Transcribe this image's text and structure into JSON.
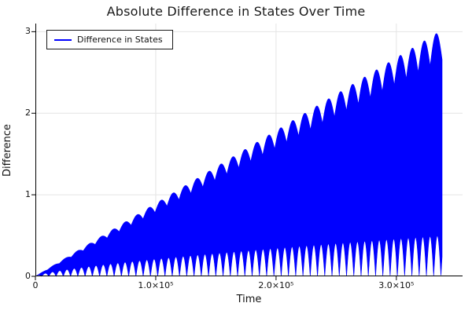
{
  "chart_data": {
    "type": "line",
    "title": "Absolute Difference in States Over Time",
    "xlabel": "Time",
    "ylabel": "Difference",
    "xlim": [
      0,
      355000
    ],
    "ylim": [
      0,
      3.1
    ],
    "grid": true,
    "grid_color": "#e4e4e4",
    "axis_color": "#000000",
    "xticks": {
      "values": [
        0,
        100000,
        200000,
        300000
      ],
      "labels": [
        "0",
        "1.0×10⁵",
        "2.0×10⁵",
        "3.0×10⁵"
      ]
    },
    "yticks": {
      "values": [
        0,
        1,
        2,
        3
      ],
      "labels": [
        "0",
        "1",
        "2",
        "3"
      ]
    },
    "legend": {
      "position": "top-left",
      "entries": [
        {
          "label": "Difference in States",
          "color": "#0000ff"
        }
      ]
    },
    "series": [
      {
        "name": "Difference in States",
        "color": "#0000ff",
        "t_end": 338000,
        "peak": 3.02,
        "upper_scallops": 34,
        "scallop_depth": 0.12,
        "lower_bumps": 56,
        "lower_max": 0.5,
        "envelope_samples": {
          "t": [
            0,
            50000,
            100000,
            150000,
            200000,
            250000,
            300000,
            338000
          ],
          "upper": [
            0,
            0.45,
            0.9,
            1.35,
            1.8,
            2.26,
            2.7,
            3.02
          ],
          "lower": [
            0,
            0.08,
            0.15,
            0.25,
            0.32,
            0.4,
            0.45,
            0.5
          ]
        }
      }
    ]
  }
}
